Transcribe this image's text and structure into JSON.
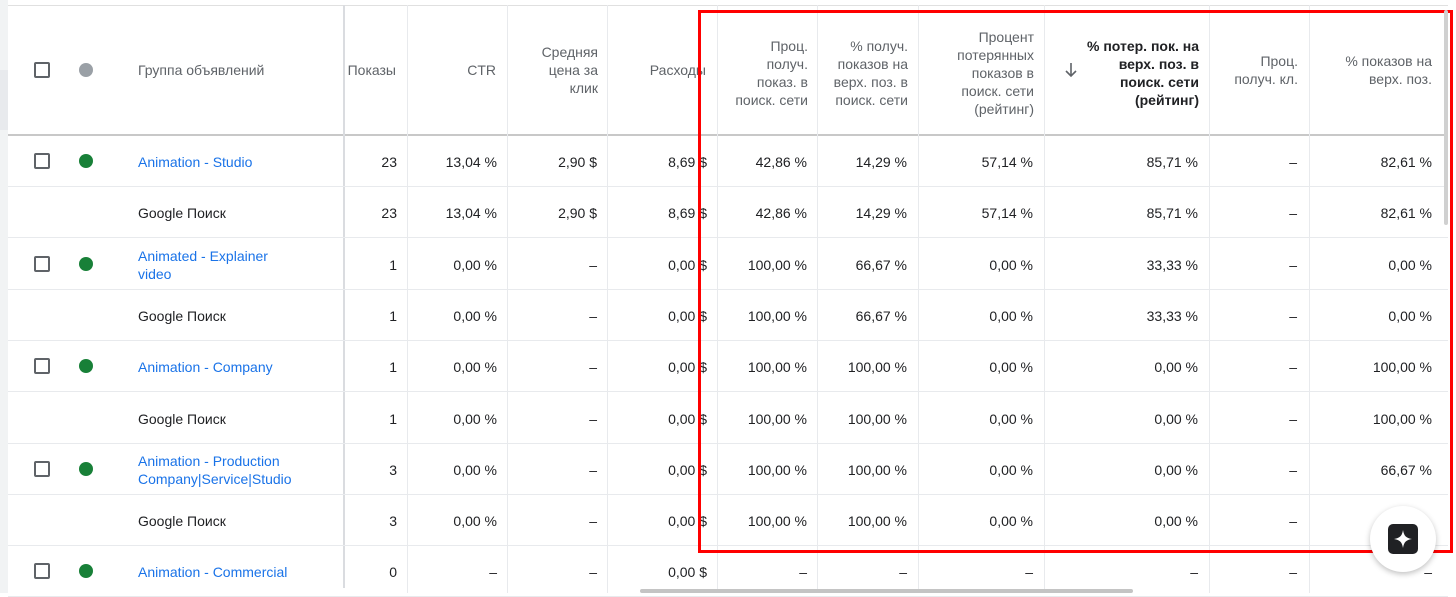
{
  "header": {
    "ad_group": "Группа объявлений",
    "impressions": "Показы",
    "ctr": "CTR",
    "avg_cpc": "Средняя цена за клик",
    "cost": "Расходы",
    "search_imp_share": "Проц. получ. показ. в поиск. сети",
    "search_top_is": "% получ. показов на верх. поз. в поиск. сети",
    "search_lost_is_rank": "Процент потерянных показов в поиск. сети (рейтинг)",
    "search_lost_top_is_rank": "% потер. пок. на верх. поз. в поиск. сети (рейтинг)",
    "click_share": "Проц. получ. кл.",
    "top_impr_pct": "% показов на верх. поз."
  },
  "rows": [
    {
      "name": "Animation - Studio",
      "impr": "23",
      "ctr": "13,04 %",
      "cpc": "2,90 $",
      "cost": "8,69 $",
      "is": "42,86 %",
      "top_is": "14,29 %",
      "lost_is": "57,14 %",
      "lost_top": "85,71 %",
      "click": "–",
      "top_pct": "82,61 %"
    },
    {
      "name": "Google Поиск",
      "impr": "23",
      "ctr": "13,04 %",
      "cpc": "2,90 $",
      "cost": "8,69 $",
      "is": "42,86 %",
      "top_is": "14,29 %",
      "lost_is": "57,14 %",
      "lost_top": "85,71 %",
      "click": "–",
      "top_pct": "82,61 %"
    },
    {
      "name": "Animated - Explainer video",
      "impr": "1",
      "ctr": "0,00 %",
      "cpc": "–",
      "cost": "0,00 $",
      "is": "100,00 %",
      "top_is": "66,67 %",
      "lost_is": "0,00 %",
      "lost_top": "33,33 %",
      "click": "–",
      "top_pct": "0,00 %"
    },
    {
      "name": "Google Поиск",
      "impr": "1",
      "ctr": "0,00 %",
      "cpc": "–",
      "cost": "0,00 $",
      "is": "100,00 %",
      "top_is": "66,67 %",
      "lost_is": "0,00 %",
      "lost_top": "33,33 %",
      "click": "–",
      "top_pct": "0,00 %"
    },
    {
      "name": "Animation - Company",
      "impr": "1",
      "ctr": "0,00 %",
      "cpc": "–",
      "cost": "0,00 $",
      "is": "100,00 %",
      "top_is": "100,00 %",
      "lost_is": "0,00 %",
      "lost_top": "0,00 %",
      "click": "–",
      "top_pct": "100,00 %"
    },
    {
      "name": "Google Поиск",
      "impr": "1",
      "ctr": "0,00 %",
      "cpc": "–",
      "cost": "0,00 $",
      "is": "100,00 %",
      "top_is": "100,00 %",
      "lost_is": "0,00 %",
      "lost_top": "0,00 %",
      "click": "–",
      "top_pct": "100,00 %"
    },
    {
      "name": "Animation - Production Company|Service|Studio",
      "impr": "3",
      "ctr": "0,00 %",
      "cpc": "–",
      "cost": "0,00 $",
      "is": "100,00 %",
      "top_is": "100,00 %",
      "lost_is": "0,00 %",
      "lost_top": "0,00 %",
      "click": "–",
      "top_pct": "66,67 %"
    },
    {
      "name": "Google Поиск",
      "impr": "3",
      "ctr": "0,00 %",
      "cpc": "–",
      "cost": "0,00 $",
      "is": "100,00 %",
      "top_is": "100,00 %",
      "lost_is": "0,00 %",
      "lost_top": "0,00 %",
      "click": "–",
      "top_pct": ""
    },
    {
      "name": "Animation - Commercial",
      "impr": "0",
      "ctr": "–",
      "cpc": "–",
      "cost": "0,00 $",
      "is": "–",
      "top_is": "–",
      "lost_is": "–",
      "lost_top": "–",
      "click": "–",
      "top_pct": "–"
    }
  ],
  "icons": {
    "sort": "arrow-down-icon",
    "fab": "sparkle-icon"
  },
  "colors": {
    "link": "#1a73e8",
    "status_enabled": "#188038",
    "highlight_box": "#ff0000"
  }
}
